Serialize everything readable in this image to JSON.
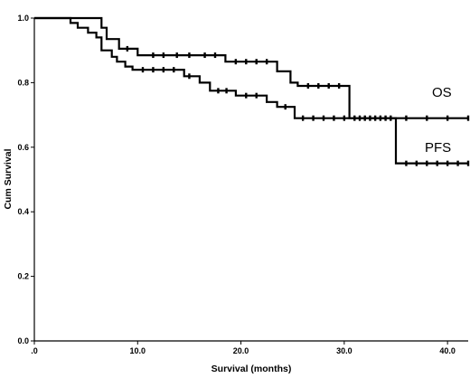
{
  "chart_data": {
    "type": "line",
    "subtype": "kaplan-meier",
    "title": "",
    "xlabel": "Survival (months)",
    "ylabel": "Cum Survival",
    "xlim": [
      0,
      42
    ],
    "ylim": [
      0,
      1.0
    ],
    "x_ticks": [
      {
        "value": 0,
        "label": ".0"
      },
      {
        "value": 10,
        "label": "10.0"
      },
      {
        "value": 20,
        "label": "20.0"
      },
      {
        "value": 30,
        "label": "30.0"
      },
      {
        "value": 40,
        "label": "40.0"
      }
    ],
    "y_ticks": [
      {
        "value": 0,
        "label": "0.0"
      },
      {
        "value": 0.2,
        "label": "0.2"
      },
      {
        "value": 0.4,
        "label": "0.4"
      },
      {
        "value": 0.6,
        "label": "0.6"
      },
      {
        "value": 0.8,
        "label": "0.8"
      },
      {
        "value": 1.0,
        "label": "1.0"
      }
    ],
    "grid": false,
    "legend": "labels placed directly at right end of curves",
    "series": [
      {
        "name": "OS",
        "steps": [
          {
            "x": 0,
            "y": 1.0
          },
          {
            "x": 6.5,
            "y": 0.97
          },
          {
            "x": 7.0,
            "y": 0.935
          },
          {
            "x": 8.2,
            "y": 0.905
          },
          {
            "x": 10.0,
            "y": 0.885
          },
          {
            "x": 18.5,
            "y": 0.865
          },
          {
            "x": 23.5,
            "y": 0.835
          },
          {
            "x": 24.8,
            "y": 0.8
          },
          {
            "x": 25.5,
            "y": 0.79
          },
          {
            "x": 30.5,
            "y": 0.69
          },
          {
            "x": 42,
            "y": 0.69
          }
        ],
        "censored": [
          {
            "x": 9.0,
            "y": 0.905
          },
          {
            "x": 11.5,
            "y": 0.885
          },
          {
            "x": 12.5,
            "y": 0.885
          },
          {
            "x": 13.8,
            "y": 0.885
          },
          {
            "x": 15.0,
            "y": 0.885
          },
          {
            "x": 16.5,
            "y": 0.885
          },
          {
            "x": 17.5,
            "y": 0.885
          },
          {
            "x": 19.5,
            "y": 0.865
          },
          {
            "x": 20.5,
            "y": 0.865
          },
          {
            "x": 21.5,
            "y": 0.865
          },
          {
            "x": 22.5,
            "y": 0.865
          },
          {
            "x": 26.5,
            "y": 0.79
          },
          {
            "x": 27.5,
            "y": 0.79
          },
          {
            "x": 28.5,
            "y": 0.79
          },
          {
            "x": 29.5,
            "y": 0.79
          },
          {
            "x": 31.5,
            "y": 0.69
          },
          {
            "x": 32.5,
            "y": 0.69
          },
          {
            "x": 33.5,
            "y": 0.69
          },
          {
            "x": 34.5,
            "y": 0.69
          },
          {
            "x": 36.0,
            "y": 0.69
          },
          {
            "x": 38.0,
            "y": 0.69
          },
          {
            "x": 40.0,
            "y": 0.69
          },
          {
            "x": 42.0,
            "y": 0.69
          }
        ]
      },
      {
        "name": "PFS",
        "steps": [
          {
            "x": 0,
            "y": 1.0
          },
          {
            "x": 3.5,
            "y": 0.985
          },
          {
            "x": 4.2,
            "y": 0.97
          },
          {
            "x": 5.2,
            "y": 0.955
          },
          {
            "x": 6.0,
            "y": 0.94
          },
          {
            "x": 6.5,
            "y": 0.9
          },
          {
            "x": 7.5,
            "y": 0.88
          },
          {
            "x": 8.0,
            "y": 0.865
          },
          {
            "x": 8.8,
            "y": 0.85
          },
          {
            "x": 9.5,
            "y": 0.84
          },
          {
            "x": 14.5,
            "y": 0.82
          },
          {
            "x": 16.0,
            "y": 0.8
          },
          {
            "x": 17.0,
            "y": 0.775
          },
          {
            "x": 19.5,
            "y": 0.76
          },
          {
            "x": 22.5,
            "y": 0.74
          },
          {
            "x": 23.5,
            "y": 0.725
          },
          {
            "x": 25.2,
            "y": 0.69
          },
          {
            "x": 35.0,
            "y": 0.55
          },
          {
            "x": 42,
            "y": 0.55
          }
        ],
        "censored": [
          {
            "x": 10.5,
            "y": 0.84
          },
          {
            "x": 11.5,
            "y": 0.84
          },
          {
            "x": 12.5,
            "y": 0.84
          },
          {
            "x": 13.5,
            "y": 0.84
          },
          {
            "x": 15.0,
            "y": 0.82
          },
          {
            "x": 17.8,
            "y": 0.775
          },
          {
            "x": 18.6,
            "y": 0.775
          },
          {
            "x": 20.5,
            "y": 0.76
          },
          {
            "x": 21.5,
            "y": 0.76
          },
          {
            "x": 24.3,
            "y": 0.725
          },
          {
            "x": 26.0,
            "y": 0.69
          },
          {
            "x": 27.0,
            "y": 0.69
          },
          {
            "x": 28.0,
            "y": 0.69
          },
          {
            "x": 29.0,
            "y": 0.69
          },
          {
            "x": 30.0,
            "y": 0.69
          },
          {
            "x": 31.0,
            "y": 0.69
          },
          {
            "x": 32.0,
            "y": 0.69
          },
          {
            "x": 33.0,
            "y": 0.69
          },
          {
            "x": 34.0,
            "y": 0.69
          },
          {
            "x": 36.0,
            "y": 0.55
          },
          {
            "x": 37.0,
            "y": 0.55
          },
          {
            "x": 38.0,
            "y": 0.55
          },
          {
            "x": 39.0,
            "y": 0.55
          },
          {
            "x": 40.0,
            "y": 0.55
          },
          {
            "x": 41.0,
            "y": 0.55
          },
          {
            "x": 42.0,
            "y": 0.55
          }
        ]
      }
    ]
  }
}
